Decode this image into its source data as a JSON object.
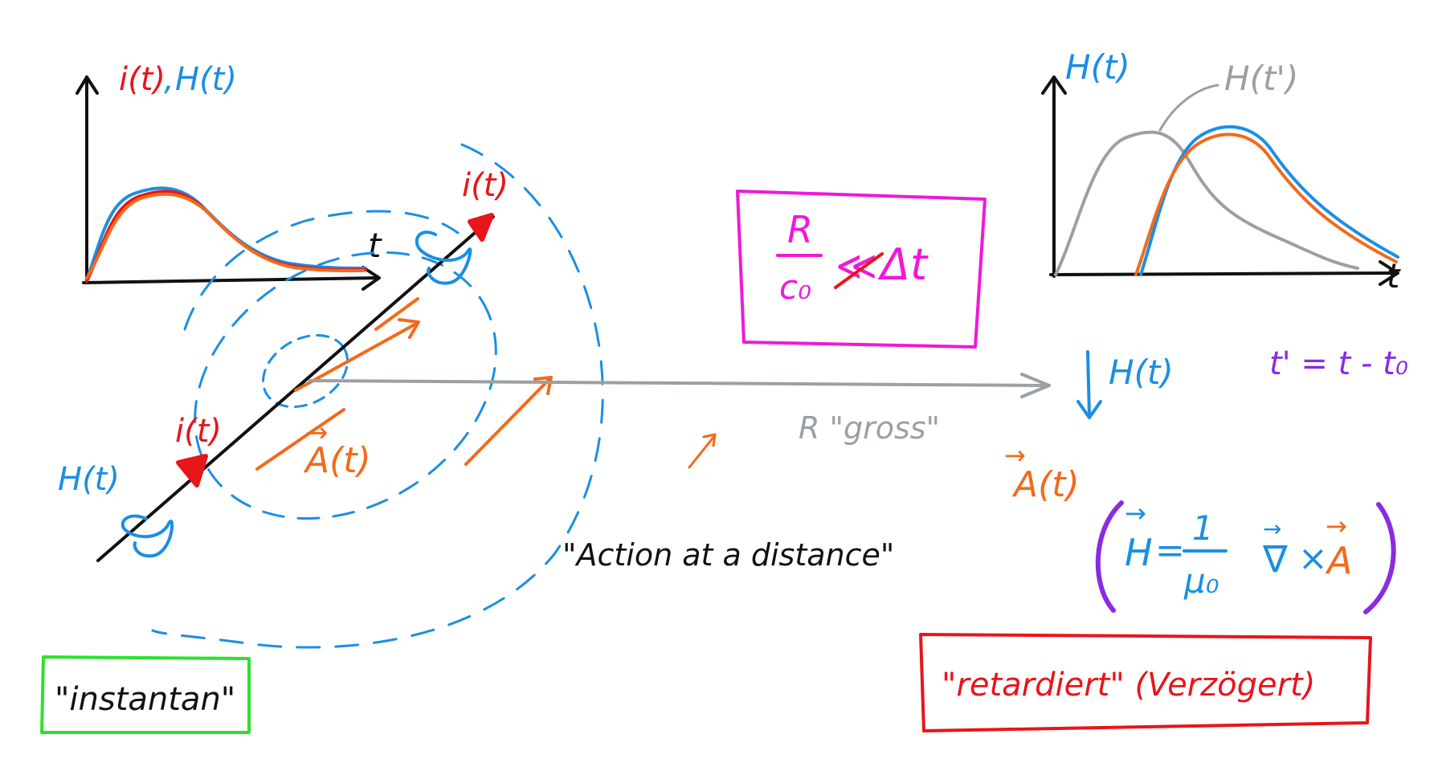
{
  "colors": {
    "black": "#111111",
    "red": "#e8151b",
    "blue": "#1a8fe3",
    "orange": "#f26a1b",
    "gray": "#9aa0a4",
    "magenta": "#f018d8",
    "purple": "#8a2be2",
    "green": "#2ee02e"
  },
  "left_graph": {
    "y_label_i": "i(t)",
    "y_label_sep": ",",
    "y_label_h": "H(t)",
    "x_label": "t"
  },
  "wire": {
    "top_current": "i(t)",
    "bottom_current": "i(t)",
    "field_label": "H(t)"
  },
  "vector_potential": {
    "label": "A(t)",
    "arrow": "→"
  },
  "distance": {
    "label": "R \"gross\""
  },
  "condition": {
    "numerator": "R",
    "denominator": "c₀",
    "relation": "≪",
    "rhs": "Δt"
  },
  "right_graph": {
    "label_h": "H(t)",
    "label_h_shifted": "H(t')",
    "x_label": "t"
  },
  "shift": {
    "equation": "t' = t - t₀"
  },
  "far_field": {
    "h_label": "H(t)",
    "a_label": "A(t)",
    "a_arrow": "→"
  },
  "equation": {
    "lhs": "H",
    "equals": "=",
    "numerator": "1",
    "denominator": "μ₀",
    "nabla": "∇",
    "cross": "×",
    "a": "A",
    "arrow": "→"
  },
  "captions": {
    "action": "\"Action at a distance\"",
    "instant": "\"instantan\"",
    "retarded": "\"retardiert\" (Verzögert)"
  }
}
